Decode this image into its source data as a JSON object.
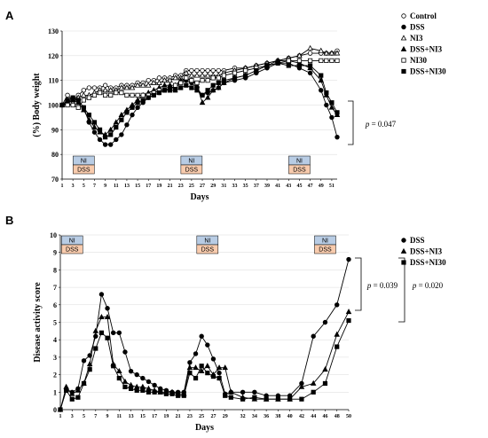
{
  "chart_data": [
    {
      "panel": "A",
      "type": "line",
      "xlabel": "Days",
      "ylabel": "(%) Body weight",
      "xlim": [
        1,
        52
      ],
      "ylim": [
        70,
        130
      ],
      "yticks": [
        70,
        80,
        90,
        100,
        110,
        120,
        130
      ],
      "xticks": [
        1,
        3,
        5,
        7,
        9,
        11,
        13,
        15,
        17,
        19,
        21,
        23,
        25,
        27,
        29,
        31,
        33,
        35,
        37,
        39,
        41,
        43,
        45,
        47,
        49,
        51
      ],
      "x": [
        1,
        2,
        3,
        4,
        5,
        6,
        7,
        8,
        9,
        10,
        11,
        12,
        13,
        14,
        15,
        16,
        17,
        18,
        19,
        20,
        21,
        22,
        23,
        24,
        25,
        26,
        27,
        28,
        29,
        30,
        31,
        33,
        35,
        37,
        39,
        41,
        43,
        45,
        47,
        49,
        50,
        51,
        52
      ],
      "series": [
        {
          "name": "Control",
          "marker": "circle-open",
          "values": [
            100,
            104,
            102,
            104,
            106,
            107,
            107,
            107,
            108,
            107,
            107,
            108,
            108,
            108,
            109,
            109,
            110,
            110,
            111,
            111,
            111,
            112,
            112,
            114,
            114,
            114,
            114,
            114,
            114,
            114,
            114,
            115,
            115,
            116,
            117,
            118,
            119,
            120,
            121,
            121,
            121,
            121,
            122
          ]
        },
        {
          "name": "DSS",
          "marker": "circle",
          "values": [
            100,
            101,
            103,
            102,
            99,
            93,
            89,
            86,
            84,
            84,
            86,
            88,
            92,
            96,
            99,
            101,
            103,
            104,
            105,
            106,
            107,
            107,
            109,
            110,
            109,
            107,
            104,
            105,
            106,
            107,
            109,
            110,
            111,
            113,
            115,
            117,
            117,
            115,
            113,
            106,
            100,
            95,
            87
          ]
        },
        {
          "name": "NI3",
          "marker": "triangle-open",
          "values": [
            100,
            102,
            101,
            103,
            104,
            104,
            105,
            106,
            106,
            106,
            106,
            107,
            107,
            107,
            108,
            108,
            108,
            109,
            109,
            110,
            110,
            111,
            111,
            113,
            112,
            112,
            112,
            112,
            112,
            112,
            113,
            114,
            115,
            116,
            117,
            118,
            119,
            120,
            123,
            122,
            121,
            121,
            121
          ]
        },
        {
          "name": "DSS+NI3",
          "marker": "triangle",
          "values": [
            100,
            101,
            102,
            101,
            98,
            94,
            91,
            89,
            88,
            90,
            93,
            96,
            98,
            100,
            102,
            104,
            105,
            106,
            107,
            108,
            108,
            108,
            110,
            111,
            110,
            108,
            101,
            103,
            106,
            107,
            109,
            111,
            112,
            114,
            116,
            118,
            118,
            117,
            115,
            110,
            104,
            99,
            96
          ]
        },
        {
          "name": "NI30",
          "marker": "square-open",
          "values": [
            100,
            100,
            100,
            99,
            102,
            103,
            104,
            105,
            104,
            104,
            105,
            105,
            104,
            104,
            104,
            104,
            104,
            105,
            106,
            106,
            106,
            108,
            109,
            111,
            110,
            109,
            110,
            110,
            111,
            111,
            112,
            113,
            114,
            115,
            116,
            117,
            118,
            118,
            118,
            118,
            118,
            118,
            118
          ]
        },
        {
          "name": "DSS+NI30",
          "marker": "square",
          "values": [
            100,
            102,
            103,
            102,
            99,
            96,
            93,
            90,
            87,
            88,
            91,
            94,
            97,
            99,
            101,
            102,
            103,
            104,
            105,
            106,
            106,
            106,
            107,
            108,
            107,
            106,
            104,
            106,
            108,
            109,
            110,
            111,
            112,
            114,
            116,
            117,
            116,
            116,
            116,
            112,
            105,
            101,
            97
          ]
        }
      ],
      "treatment_boxes": [
        {
          "day": 5,
          "top": "NI",
          "bottom": "DSS"
        },
        {
          "day": 25,
          "top": "NI",
          "bottom": "DSS"
        },
        {
          "day": 45,
          "top": "NI",
          "bottom": "DSS"
        }
      ],
      "annotation": "p = 0.047",
      "annotation_parts": {
        "italic": "p",
        "rest": " = 0.047"
      },
      "legend_placement": "top-right"
    },
    {
      "panel": "B",
      "type": "line",
      "xlabel": "Days",
      "ylabel": "Disease activity score",
      "xlim": [
        1,
        50
      ],
      "ylim": [
        0,
        10
      ],
      "yticks": [
        0,
        1,
        2,
        3,
        4,
        5,
        6,
        7,
        8,
        9,
        10
      ],
      "xticks": [
        1,
        3,
        5,
        7,
        9,
        11,
        13,
        15,
        17,
        19,
        21,
        23,
        25,
        27,
        29,
        32,
        34,
        36,
        38,
        40,
        42,
        44,
        46,
        48,
        50
      ],
      "x": [
        1,
        2,
        3,
        4,
        5,
        6,
        7,
        8,
        9,
        10,
        11,
        12,
        13,
        14,
        15,
        16,
        17,
        18,
        19,
        20,
        21,
        22,
        23,
        24,
        25,
        26,
        27,
        28,
        29,
        30,
        32,
        34,
        36,
        38,
        40,
        42,
        44,
        46,
        48,
        50
      ],
      "series": [
        {
          "name": "DSS",
          "marker": "circle",
          "values": [
            0,
            1.1,
            1.0,
            1.2,
            2.8,
            3.1,
            4.2,
            6.6,
            5.8,
            4.4,
            4.4,
            3.3,
            2.2,
            2.0,
            1.8,
            1.6,
            1.4,
            1.2,
            1.1,
            1.0,
            1.0,
            1.0,
            2.7,
            3.2,
            4.2,
            3.7,
            2.9,
            2.1,
            0.9,
            1.0,
            1.0,
            1.0,
            0.8,
            0.8,
            0.8,
            1.5,
            4.2,
            5.0,
            6.0,
            8.6
          ]
        },
        {
          "name": "DSS+NI3",
          "marker": "triangle",
          "values": [
            0,
            1.3,
            0.9,
            1.1,
            1.5,
            2.6,
            4.5,
            5.3,
            5.3,
            2.6,
            2.2,
            1.6,
            1.4,
            1.3,
            1.3,
            1.2,
            1.1,
            1.0,
            1.0,
            1.0,
            0.9,
            0.9,
            2.4,
            2.4,
            2.2,
            2.5,
            2.0,
            2.4,
            2.4,
            1.0,
            0.7,
            0.6,
            0.6,
            0.6,
            0.6,
            1.3,
            1.5,
            2.3,
            4.3,
            5.6
          ]
        },
        {
          "name": "DSS+NI30",
          "marker": "square",
          "values": [
            0,
            1.1,
            0.6,
            0.7,
            1.5,
            2.3,
            3.5,
            4.4,
            4.1,
            2.5,
            1.8,
            1.3,
            1.2,
            1.1,
            1.1,
            1.0,
            1.0,
            1.0,
            0.9,
            0.9,
            0.8,
            0.8,
            2.1,
            1.8,
            2.5,
            2.1,
            1.9,
            1.8,
            0.8,
            0.7,
            0.6,
            0.7,
            0.6,
            0.6,
            0.6,
            0.6,
            1.0,
            1.5,
            3.6,
            5.1
          ]
        }
      ],
      "treatment_boxes": [
        {
          "day": 3,
          "top": "NI",
          "bottom": "DSS"
        },
        {
          "day": 26,
          "top": "NI",
          "bottom": "DSS"
        },
        {
          "day": 46,
          "top": "NI",
          "bottom": "DSS"
        }
      ],
      "annotations": [
        {
          "text": "p = 0.039",
          "italic": "p",
          "rest": " = 0.039"
        },
        {
          "text": "p = 0.020",
          "italic": "p",
          "rest": " = 0.020"
        }
      ],
      "legend_placement": "top-right"
    }
  ],
  "colors": {
    "line": "#000000",
    "box_ni": "#b8cce4",
    "box_dss": "#f8cbad",
    "grid": "#d9d9d9"
  }
}
